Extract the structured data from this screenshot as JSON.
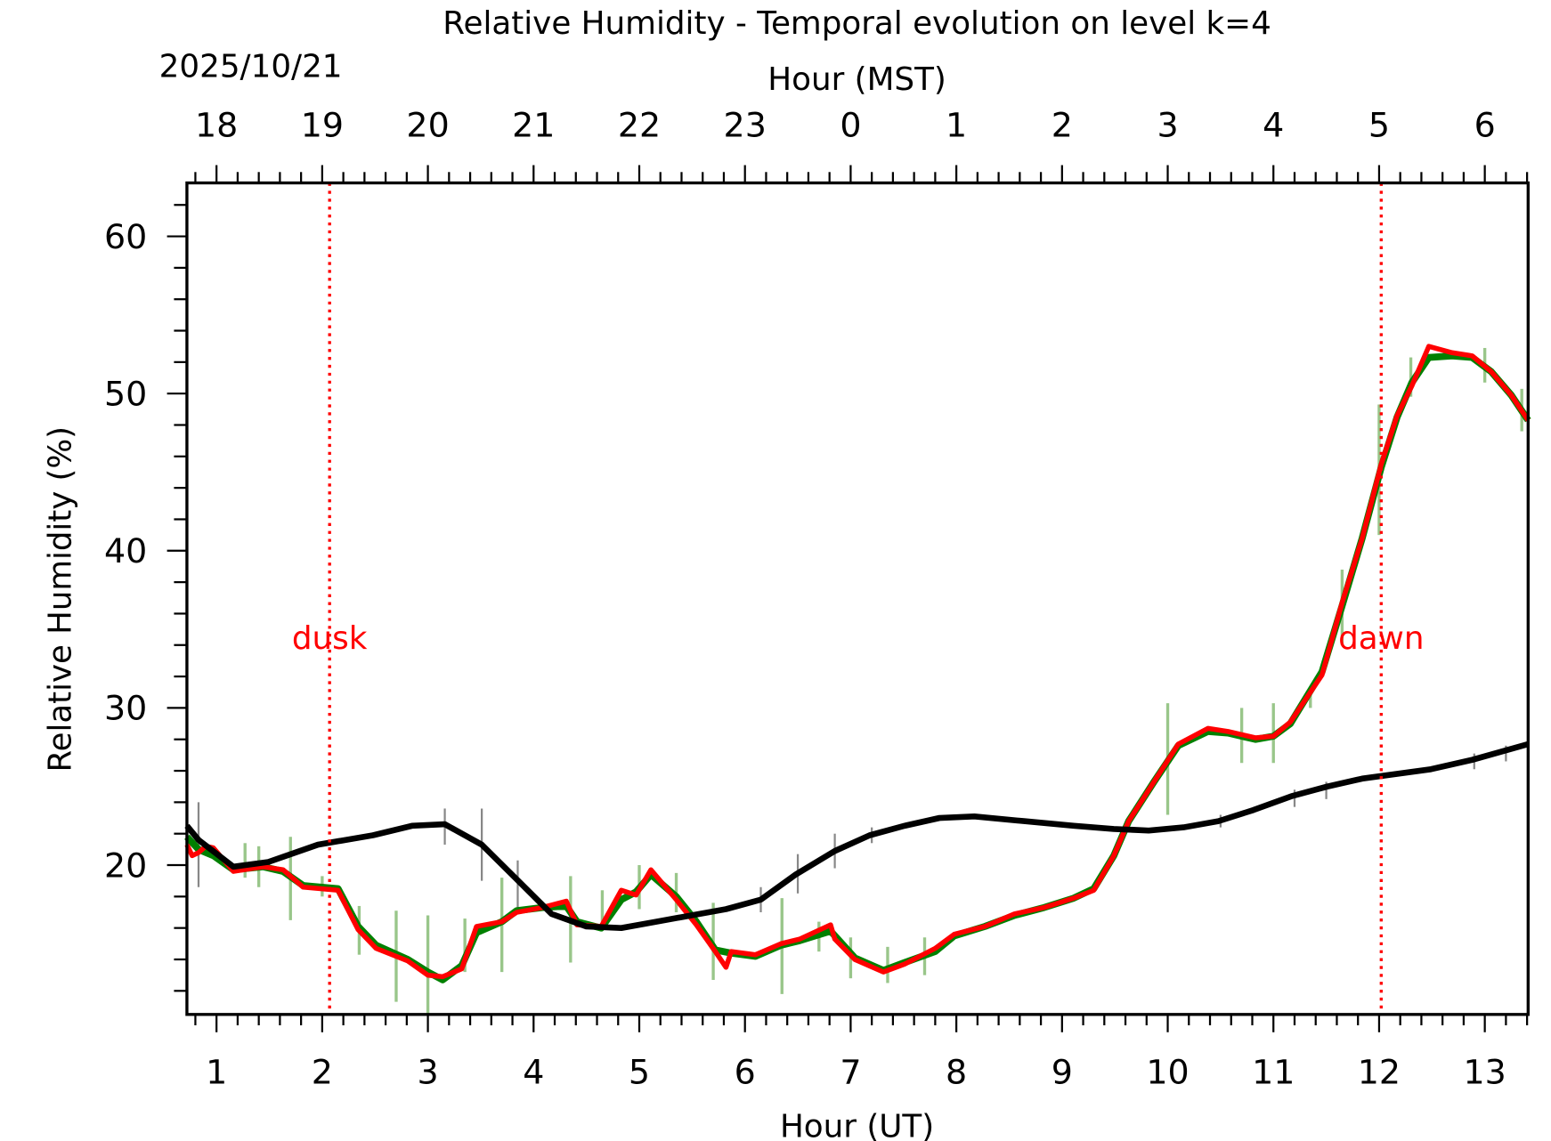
{
  "chart_data": {
    "type": "line",
    "title": "Relative Humidity - Temporal evolution on level k=4",
    "xlabel": "Hour (UT)",
    "x2label": "Hour (MST)",
    "date_label": "2025/10/21",
    "ylabel": "Relative Humidity (%)",
    "xlim": [
      0.72,
      13.41
    ],
    "ylim": [
      10.5,
      63.4
    ],
    "x_ticks": [
      1,
      2,
      3,
      4,
      5,
      6,
      7,
      8,
      9,
      10,
      11,
      12,
      13
    ],
    "x2_ticks": [
      18,
      19,
      20,
      21,
      22,
      23,
      0,
      1,
      2,
      3,
      4,
      5,
      6
    ],
    "x2_offset_hours": -7,
    "y_ticks": [
      20,
      30,
      40,
      50,
      60
    ],
    "grid": false,
    "colors": {
      "observed": "#ff0000",
      "observed_smooth": "#008000",
      "model": "#000000",
      "obs_errorbar": "#99c68a",
      "model_errorbar": "#888888",
      "annotation": "#ff0000"
    },
    "annotations": [
      {
        "label": "dusk",
        "x": 2.07
      },
      {
        "label": "dawn",
        "x": 12.02
      }
    ],
    "series": [
      {
        "key": "observed_smooth",
        "x": [
          0.72,
          0.83,
          0.97,
          1.16,
          1.44,
          1.63,
          1.82,
          2.15,
          2.34,
          2.51,
          2.81,
          3.0,
          3.14,
          3.32,
          3.46,
          3.7,
          3.84,
          4.08,
          4.31,
          4.41,
          4.64,
          4.83,
          4.97,
          5.11,
          5.35,
          5.54,
          5.72,
          5.87,
          6.1,
          6.34,
          6.52,
          6.81,
          7.04,
          7.31,
          7.51,
          7.8,
          7.98,
          8.27,
          8.55,
          8.83,
          9.11,
          9.3,
          9.49,
          9.63,
          9.87,
          10.1,
          10.38,
          10.57,
          10.83,
          11.0,
          11.16,
          11.46,
          11.65,
          11.84,
          12.02,
          12.17,
          12.31,
          12.47,
          12.69,
          12.88,
          13.06,
          13.25,
          13.41
        ],
        "y": [
          21.8,
          21.0,
          20.6,
          19.7,
          19.9,
          19.6,
          18.7,
          18.5,
          16.1,
          14.9,
          14.0,
          13.2,
          12.7,
          13.6,
          15.7,
          16.4,
          17.1,
          17.3,
          17.4,
          16.4,
          16.0,
          17.8,
          18.3,
          19.4,
          18.0,
          16.4,
          14.6,
          14.4,
          14.2,
          14.9,
          15.2,
          15.8,
          14.1,
          13.3,
          13.8,
          14.5,
          15.5,
          16.1,
          16.8,
          17.3,
          17.9,
          18.5,
          20.6,
          22.8,
          25.3,
          27.6,
          28.5,
          28.4,
          28.0,
          28.2,
          29.0,
          32.3,
          36.5,
          40.8,
          45.3,
          48.5,
          50.7,
          52.3,
          52.4,
          52.3,
          51.4,
          49.9,
          48.3
        ]
      },
      {
        "key": "observed",
        "x": [
          0.72,
          0.77,
          0.83,
          0.9,
          0.97,
          1.16,
          1.44,
          1.63,
          1.82,
          2.15,
          2.34,
          2.51,
          2.81,
          3.0,
          3.14,
          3.32,
          3.46,
          3.7,
          3.84,
          4.08,
          4.31,
          4.41,
          4.64,
          4.83,
          4.97,
          5.11,
          5.35,
          5.54,
          5.72,
          5.82,
          5.87,
          6.1,
          6.34,
          6.52,
          6.81,
          6.85,
          7.04,
          7.31,
          7.51,
          7.8,
          7.98,
          8.27,
          8.55,
          8.83,
          9.11,
          9.3,
          9.49,
          9.63,
          9.87,
          10.1,
          10.38,
          10.57,
          10.83,
          11.0,
          11.16,
          11.46,
          11.65,
          11.84,
          12.02,
          12.17,
          12.31,
          12.47,
          12.69,
          12.88,
          13.06,
          13.25,
          13.41
        ],
        "y": [
          21.3,
          20.6,
          20.8,
          21.2,
          21.1,
          19.6,
          19.9,
          19.7,
          18.6,
          18.4,
          15.9,
          14.7,
          13.9,
          13.0,
          12.9,
          13.4,
          16.1,
          16.4,
          17.0,
          17.3,
          17.7,
          16.2,
          16.1,
          18.4,
          18.1,
          19.7,
          17.8,
          16.2,
          14.5,
          13.5,
          14.5,
          14.3,
          15.0,
          15.3,
          16.2,
          15.3,
          14.0,
          13.2,
          13.7,
          14.7,
          15.6,
          16.1,
          16.9,
          17.3,
          17.9,
          18.4,
          20.6,
          22.8,
          25.3,
          27.7,
          28.7,
          28.5,
          28.1,
          28.2,
          29.1,
          32.1,
          36.7,
          40.8,
          45.5,
          48.6,
          50.5,
          53.0,
          52.6,
          52.4,
          51.4,
          49.9,
          48.3
        ]
      },
      {
        "key": "model",
        "x": [
          0.72,
          0.83,
          1.16,
          1.49,
          1.96,
          2.48,
          2.85,
          3.16,
          3.51,
          3.84,
          4.17,
          4.5,
          4.83,
          5.16,
          5.82,
          6.15,
          6.48,
          6.85,
          7.18,
          7.51,
          7.84,
          8.17,
          8.64,
          9.11,
          9.49,
          9.82,
          10.15,
          10.48,
          10.81,
          11.18,
          11.51,
          11.84,
          12.49,
          12.88,
          13.41
        ],
        "y": [
          22.5,
          21.6,
          19.9,
          20.2,
          21.3,
          21.9,
          22.5,
          22.6,
          21.3,
          19.1,
          16.9,
          16.1,
          16.0,
          16.4,
          17.2,
          17.8,
          19.4,
          20.9,
          21.9,
          22.5,
          23.0,
          23.1,
          22.8,
          22.5,
          22.3,
          22.2,
          22.4,
          22.8,
          23.5,
          24.4,
          25.0,
          25.5,
          26.1,
          26.7,
          27.7
        ]
      }
    ],
    "obs_errorbars": [
      [
        1.27,
        19.2,
        21.4
      ],
      [
        1.4,
        18.6,
        21.2
      ],
      [
        1.7,
        16.5,
        21.8
      ],
      [
        2.0,
        18.0,
        19.3
      ],
      [
        2.35,
        14.3,
        17.4
      ],
      [
        2.7,
        11.3,
        17.1
      ],
      [
        3.0,
        10.5,
        16.8
      ],
      [
        3.35,
        13.2,
        16.6
      ],
      [
        3.7,
        13.2,
        19.2
      ],
      [
        4.35,
        13.8,
        19.3
      ],
      [
        4.65,
        16.3,
        18.4
      ],
      [
        5.0,
        17.2,
        20.0
      ],
      [
        5.35,
        17.0,
        19.5
      ],
      [
        5.7,
        12.7,
        17.6
      ],
      [
        6.35,
        11.8,
        17.9
      ],
      [
        6.7,
        14.5,
        16.4
      ],
      [
        7.0,
        12.8,
        15.4
      ],
      [
        7.35,
        12.5,
        14.8
      ],
      [
        7.7,
        13.0,
        15.4
      ],
      [
        10.0,
        23.2,
        30.3
      ],
      [
        10.7,
        26.5,
        30.0
      ],
      [
        11.0,
        26.5,
        30.3
      ],
      [
        11.35,
        30.0,
        31.2
      ],
      [
        11.65,
        34.0,
        38.8
      ],
      [
        12.0,
        41.0,
        49.3
      ],
      [
        12.3,
        49.8,
        52.3
      ],
      [
        13.0,
        50.7,
        52.9
      ],
      [
        13.35,
        47.6,
        50.3
      ]
    ],
    "model_errorbars": [
      [
        0.83,
        18.6,
        24.0
      ],
      [
        3.16,
        21.3,
        23.6
      ],
      [
        3.51,
        19.0,
        23.6
      ],
      [
        3.85,
        17.0,
        20.3
      ],
      [
        6.15,
        17.0,
        18.6
      ],
      [
        6.5,
        18.2,
        20.7
      ],
      [
        6.85,
        19.8,
        22.0
      ],
      [
        7.2,
        21.4,
        22.4
      ],
      [
        10.5,
        22.4,
        23.2
      ],
      [
        11.2,
        23.7,
        24.8
      ],
      [
        11.5,
        24.2,
        25.3
      ],
      [
        12.9,
        26.1,
        27.1
      ],
      [
        13.2,
        26.6,
        27.6
      ]
    ]
  }
}
